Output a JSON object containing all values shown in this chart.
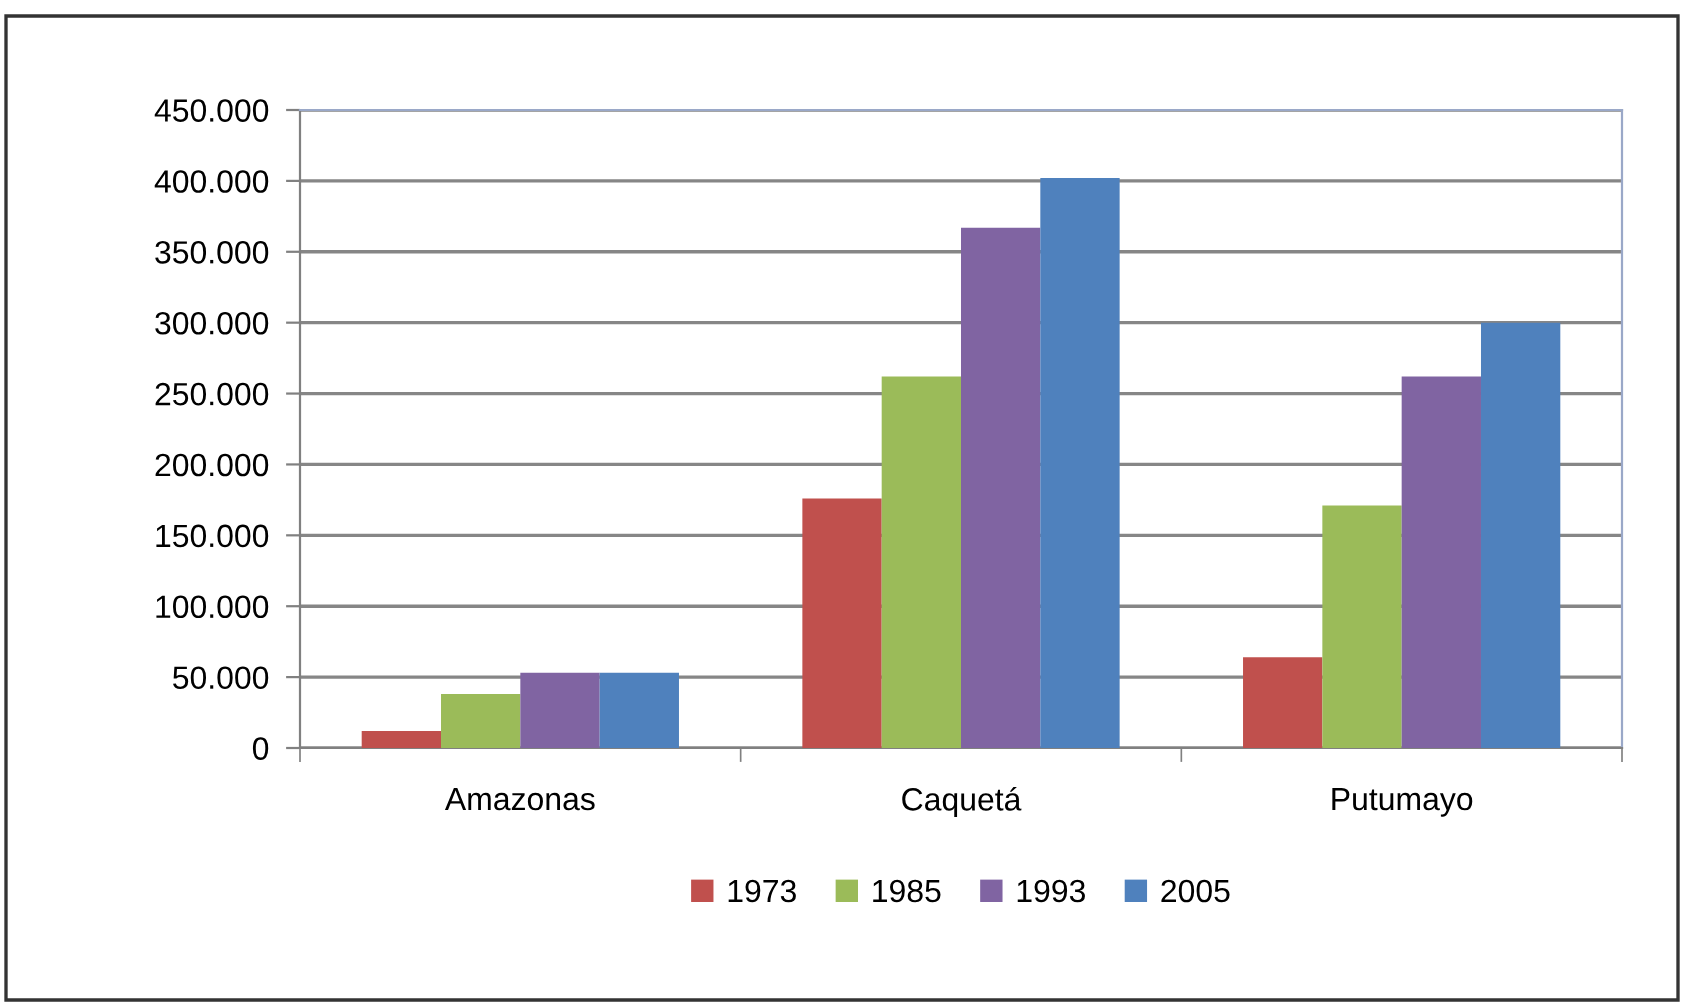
{
  "chart_data": {
    "type": "bar",
    "categories": [
      "Amazonas",
      "Caquetá",
      "Putumayo"
    ],
    "series": [
      {
        "name": "1973",
        "color": "#c0504d",
        "values": [
          12000,
          176000,
          64000
        ]
      },
      {
        "name": "1985",
        "color": "#9bbb59",
        "values": [
          38000,
          262000,
          171000
        ]
      },
      {
        "name": "1993",
        "color": "#8064a2",
        "values": [
          53000,
          367000,
          262000
        ]
      },
      {
        "name": "2005",
        "color": "#4f81bd",
        "values": [
          53000,
          402000,
          300000
        ]
      }
    ],
    "ylim": [
      0,
      450000
    ],
    "yticks": [
      0,
      {
        "value": 50000,
        "label": "50.000"
      },
      {
        "value": 100000,
        "label": "100.000"
      },
      {
        "value": 150000,
        "label": "150.000"
      },
      {
        "value": 200000,
        "label": "200.000"
      },
      {
        "value": 250000,
        "label": "250.000"
      },
      {
        "value": 300000,
        "label": "300.000"
      },
      {
        "value": 350000,
        "label": "350.000"
      },
      {
        "value": 400000,
        "label": "400.000"
      },
      {
        "value": 450000,
        "label": "450.000"
      }
    ],
    "grid": "y",
    "legend": "bottom"
  }
}
